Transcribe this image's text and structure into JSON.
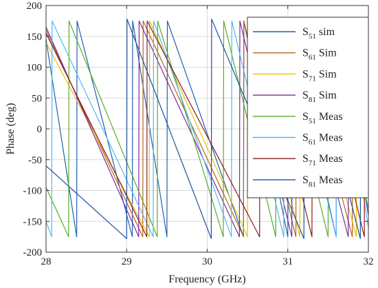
{
  "chart_data": {
    "type": "line",
    "xlabel": "Frequency (GHz)",
    "ylabel": "Phase (deg)",
    "xlim": [
      28,
      32
    ],
    "ylim": [
      -200,
      200
    ],
    "x_ticks": [
      "28",
      "29",
      "30",
      "31",
      "32"
    ],
    "y_ticks": [
      "200",
      "150",
      "100",
      "50",
      "0",
      "-50",
      "-100",
      "-150",
      "-200"
    ],
    "grid": true,
    "legend_position": "top-right",
    "series": [
      {
        "name": "S51 sim",
        "label_main": "S",
        "label_sub": "51",
        "label_rest": " sim",
        "color": "#1f5fb0",
        "x": [
          28.0,
          28.38,
          28.385,
          29.07,
          29.075,
          29.5,
          29.505,
          30.45,
          30.455,
          31.0,
          31.005,
          31.6,
          31.605,
          32.0
        ],
        "y": [
          145,
          -175,
          175,
          -175,
          175,
          -175,
          175,
          -175,
          175,
          -175,
          175,
          -175,
          175,
          -140
        ]
      },
      {
        "name": "S61 Sim",
        "label_main": "S",
        "label_sub": "61",
        "label_rest": " Sim",
        "color": "#b5651d",
        "x": [
          28.0,
          29.2,
          29.205,
          30.45,
          30.455,
          31.1,
          31.105,
          31.8,
          31.805,
          32.0
        ],
        "y": [
          160,
          -175,
          175,
          -175,
          175,
          -175,
          175,
          -175,
          175,
          120
        ]
      },
      {
        "name": "S71 Sim",
        "label_main": "S",
        "label_sub": "71",
        "label_rest": " Sim",
        "color": "#e8c200",
        "x": [
          28.0,
          29.28,
          29.285,
          30.5,
          30.505,
          31.15,
          31.155,
          31.85,
          31.855,
          32.0
        ],
        "y": [
          140,
          -175,
          175,
          -175,
          175,
          -175,
          175,
          -175,
          175,
          130
        ]
      },
      {
        "name": "S81 Sim",
        "label_main": "S",
        "label_sub": "81",
        "label_rest": " Sim",
        "color": "#7b2a9c",
        "x": [
          28.0,
          29.15,
          29.155,
          30.4,
          30.405,
          31.05,
          31.055,
          31.75,
          31.755,
          32.0
        ],
        "y": [
          165,
          -175,
          175,
          -175,
          175,
          -175,
          175,
          -175,
          175,
          110
        ]
      },
      {
        "name": "S51 Meas",
        "label_main": "S",
        "label_sub": "51",
        "label_rest": " Meas",
        "color": "#5aaa2a",
        "x": [
          28.0,
          28.28,
          28.285,
          29.38,
          29.385,
          30.2,
          30.205,
          30.85,
          30.855,
          31.5,
          31.505,
          32.0
        ],
        "y": [
          -95,
          -175,
          175,
          -175,
          175,
          -175,
          175,
          -175,
          175,
          -175,
          175,
          -130
        ]
      },
      {
        "name": "S61 Meas",
        "label_main": "S",
        "label_sub": "61",
        "label_rest": " Meas",
        "color": "#4fb8f0",
        "x": [
          28.0,
          28.07,
          28.075,
          29.33,
          29.335,
          30.3,
          30.305,
          30.95,
          30.955,
          31.6,
          31.605,
          32.0
        ],
        "y": [
          -150,
          -175,
          175,
          -175,
          175,
          -175,
          175,
          -175,
          175,
          -175,
          175,
          -160
        ]
      },
      {
        "name": "S71 Meas",
        "label_main": "S",
        "label_sub": "71",
        "label_rest": " Meas",
        "color": "#8b1a1a",
        "x": [
          28.0,
          29.25,
          29.255,
          30.65,
          30.655,
          31.3,
          31.305,
          31.95,
          31.955,
          32.0
        ],
        "y": [
          155,
          -175,
          175,
          -175,
          175,
          -175,
          175,
          -175,
          175,
          150
        ]
      },
      {
        "name": "S81 Meas",
        "label_main": "S",
        "label_sub": "81",
        "label_rest": " Meas",
        "color": "#1a4fa0",
        "x": [
          28.0,
          29.0,
          29.005,
          30.05,
          30.055,
          31.2,
          31.205,
          31.9,
          31.905,
          32.0
        ],
        "y": [
          -60,
          -178,
          178,
          -178,
          178,
          -178,
          178,
          -178,
          178,
          140
        ]
      }
    ]
  }
}
